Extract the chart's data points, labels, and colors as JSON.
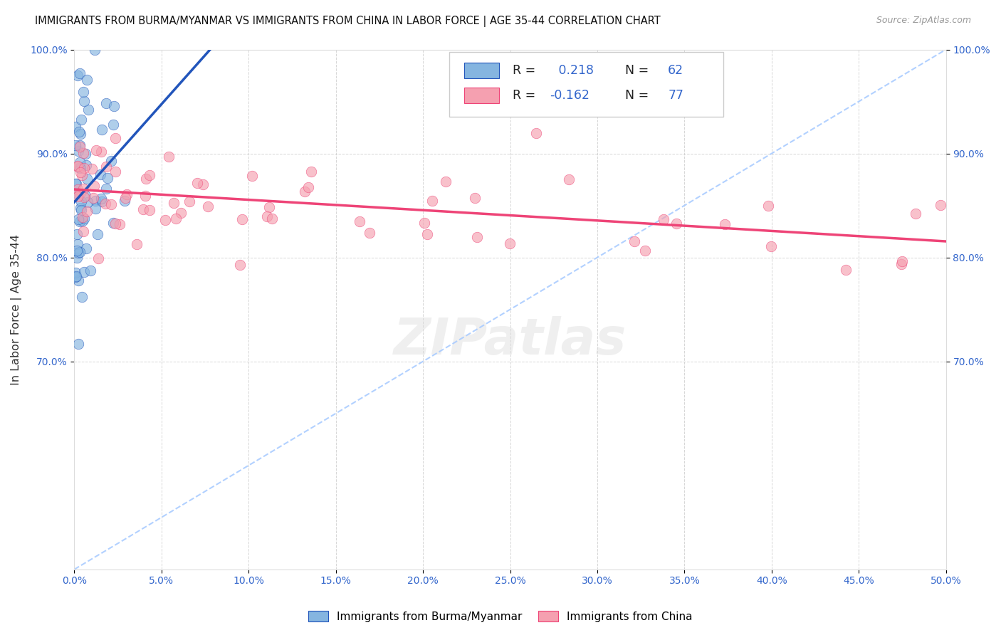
{
  "title": "IMMIGRANTS FROM BURMA/MYANMAR VS IMMIGRANTS FROM CHINA IN LABOR FORCE | AGE 35-44 CORRELATION CHART",
  "source": "Source: ZipAtlas.com",
  "ylabel": "In Labor Force | Age 35-44",
  "legend_label1": "Immigrants from Burma/Myanmar",
  "legend_label2": "Immigrants from China",
  "R1": 0.218,
  "N1": 62,
  "R2": -0.162,
  "N2": 77,
  "color_burma": "#85B5E0",
  "color_china": "#F5A0B0",
  "color_burma_line": "#2255BB",
  "color_china_line": "#EE4477",
  "color_diagonal": "#AACCFF",
  "xlim": [
    0.0,
    0.5
  ],
  "ylim": [
    0.5,
    1.0
  ],
  "xticks": [
    0.0,
    0.05,
    0.1,
    0.15,
    0.2,
    0.25,
    0.3,
    0.35,
    0.4,
    0.45,
    0.5
  ],
  "yticks_left": [
    0.7,
    0.8,
    0.9,
    1.0
  ],
  "yticks_right": [
    0.7,
    0.8,
    0.9,
    1.0
  ],
  "watermark": "ZIPatlas"
}
